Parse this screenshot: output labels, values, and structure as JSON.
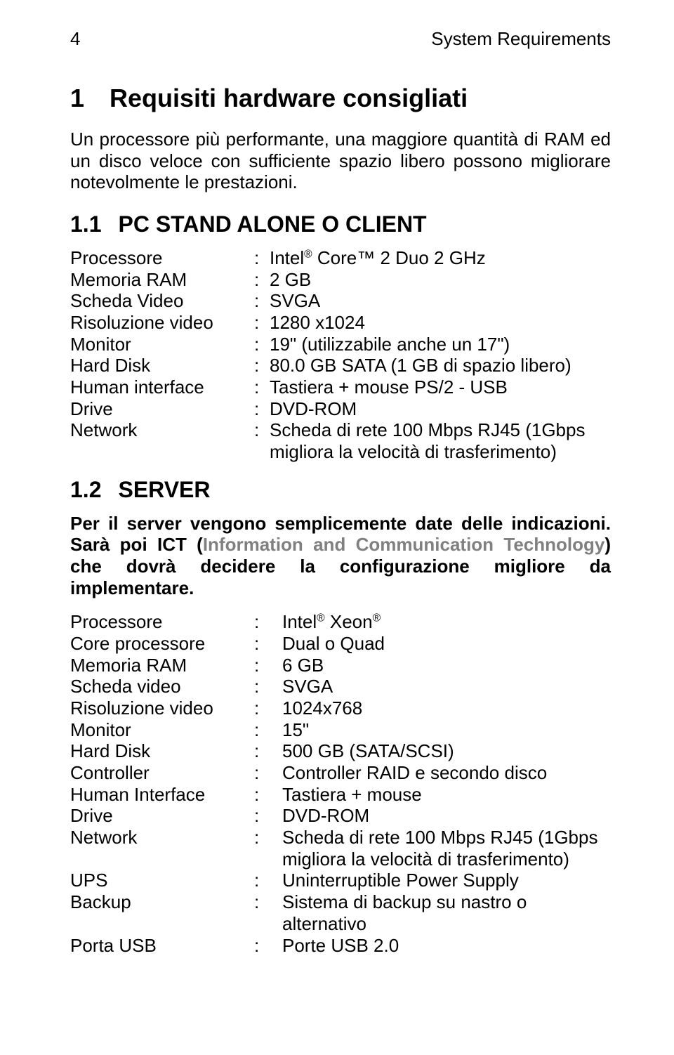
{
  "page_number": "4",
  "header_title": "System Requirements",
  "h1_num": "1",
  "h1_text": "Requisiti hardware consigliati",
  "intro": "Un processore più performante, una maggiore quantità di RAM ed un disco veloce con sufficiente spazio libero possono migliorare notevolmente le prestazioni.",
  "s11_num": "1.1",
  "s11_title": "PC STAND ALONE O CLIENT",
  "client": {
    "r0l": "Processore",
    "r0v_pre": "Intel",
    "r0v_post": " Core™ 2 Duo 2 GHz",
    "r1l": "Memoria RAM",
    "r1v": "2 GB",
    "r2l": "Scheda Video",
    "r2v": "SVGA",
    "r3l": "Risoluzione video",
    "r3v": "1280 x1024",
    "r4l": "Monitor",
    "r4v": "19\" (utilizzabile anche un 17\")",
    "r5l": "Hard Disk",
    "r5v": "80.0 GB SATA (1 GB di spazio libero)",
    "r6l": "Human interface",
    "r6v": "Tastiera + mouse PS/2 - USB",
    "r7l": "Drive",
    "r7v": "DVD-ROM",
    "r8l": "Network",
    "r8v": "Scheda di rete 100 Mbps RJ45 (1Gbps",
    "r8v2": "migliora la velocità di trasferimento)"
  },
  "s12_num": "1.2",
  "s12_title": "SERVER",
  "server_para_1": "Per il server vengono semplicemente date delle indicazioni. Sarà poi ICT (",
  "server_para_grey": "Information and Communication Technology",
  "server_para_2": ") che dovrà decidere la configurazione migliore da implementare.",
  "server": {
    "r0l": "Processore",
    "r0v_pre": "Intel",
    "r0v_mid": " Xeon",
    "r1l": "Core processore",
    "r1v": "Dual o Quad",
    "r2l": "Memoria RAM",
    "r2v": "6 GB",
    "r3l": "Scheda video",
    "r3v": "SVGA",
    "r4l": "Risoluzione video",
    "r4v": "1024x768",
    "r5l": "Monitor",
    "r5v": "15\"",
    "r6l": "Hard Disk",
    "r6v": "500 GB (SATA/SCSI)",
    "r7l": "Controller",
    "r7v": "Controller RAID e secondo disco",
    "r8l": "Human Interface",
    "r8v": "Tastiera + mouse",
    "r9l": "Drive",
    "r9v": "DVD-ROM",
    "r10l": "Network",
    "r10v": "Scheda di rete 100 Mbps RJ45 (1Gbps",
    "r10v2": "migliora la velocità di trasferimento)",
    "r11l": "UPS",
    "r11v": "Uninterruptible Power Supply",
    "r12l": "Backup",
    "r12v": "Sistema di backup su nastro o",
    "r12v2": "alternativo",
    "r13l": "Porta USB",
    "r13v": "Porte USB 2.0"
  },
  "reg_mark": "®"
}
